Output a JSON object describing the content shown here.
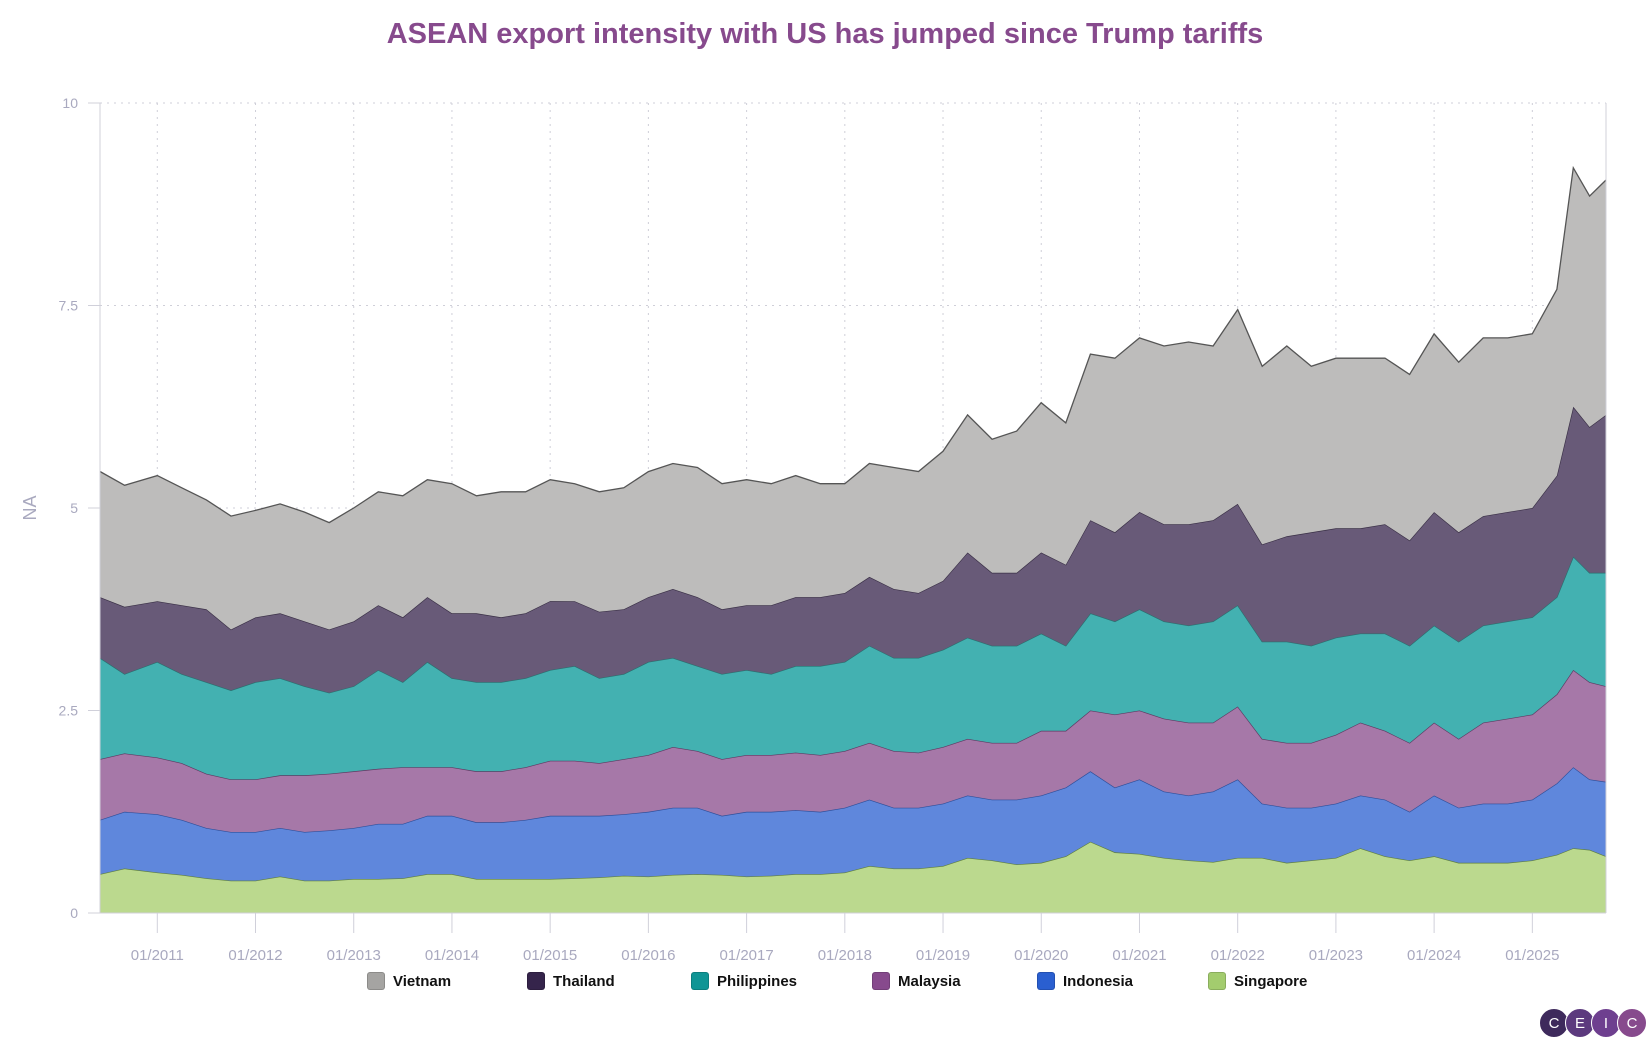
{
  "chart_data": {
    "type": "area",
    "stacked": true,
    "title": "ASEAN export intensity with US has jumped since Trump tariffs",
    "ylabel": "NA",
    "xlabel": "",
    "ylim": [
      0,
      10
    ],
    "yticks": [
      "0",
      "2.5",
      "5",
      "7.5",
      "10"
    ],
    "ytick_values": [
      0,
      2.5,
      5,
      7.5,
      10
    ],
    "xticks": [
      "01/2011",
      "01/2012",
      "01/2013",
      "01/2014",
      "01/2015",
      "01/2016",
      "01/2017",
      "01/2018",
      "01/2019",
      "01/2020",
      "01/2021",
      "01/2022",
      "01/2023",
      "01/2024",
      "01/2025"
    ],
    "xrange": [
      "2010-06",
      "2025-10"
    ],
    "grid": "dotted both axes",
    "legend_position": "bottom",
    "x": [
      "2010-06",
      "2010-09",
      "2011-01",
      "2011-04",
      "2011-07",
      "2011-10",
      "2012-01",
      "2012-04",
      "2012-07",
      "2012-10",
      "2013-01",
      "2013-04",
      "2013-07",
      "2013-10",
      "2014-01",
      "2014-04",
      "2014-07",
      "2014-10",
      "2015-01",
      "2015-04",
      "2015-07",
      "2015-10",
      "2016-01",
      "2016-04",
      "2016-07",
      "2016-10",
      "2017-01",
      "2017-04",
      "2017-07",
      "2017-10",
      "2018-01",
      "2018-04",
      "2018-07",
      "2018-10",
      "2019-01",
      "2019-04",
      "2019-07",
      "2019-10",
      "2020-01",
      "2020-04",
      "2020-07",
      "2020-10",
      "2021-01",
      "2021-04",
      "2021-07",
      "2021-10",
      "2022-01",
      "2022-04",
      "2022-07",
      "2022-10",
      "2023-01",
      "2023-04",
      "2023-07",
      "2023-10",
      "2024-01",
      "2024-04",
      "2024-07",
      "2024-10",
      "2025-01",
      "2025-04",
      "2025-06",
      "2025-08",
      "2025-10"
    ],
    "series": [
      {
        "name": "Singapore",
        "color": "#a3cc6e",
        "fill": "#bbd98e",
        "stroke": "#5f7f3f",
        "values": [
          0.48,
          0.55,
          0.5,
          0.47,
          0.43,
          0.4,
          0.4,
          0.45,
          0.4,
          0.4,
          0.42,
          0.42,
          0.43,
          0.48,
          0.48,
          0.42,
          0.42,
          0.42,
          0.42,
          0.43,
          0.44,
          0.46,
          0.45,
          0.47,
          0.48,
          0.47,
          0.45,
          0.46,
          0.48,
          0.48,
          0.5,
          0.58,
          0.55,
          0.55,
          0.58,
          0.68,
          0.65,
          0.6,
          0.62,
          0.7,
          0.88,
          0.75,
          0.73,
          0.68,
          0.65,
          0.63,
          0.68,
          0.68,
          0.62,
          0.65,
          0.68,
          0.8,
          0.7,
          0.65,
          0.7,
          0.62,
          0.62,
          0.62,
          0.65,
          0.72,
          0.8,
          0.78,
          0.7
        ]
      },
      {
        "name": "Indonesia",
        "color": "#2a5fd0",
        "fill": "#5f87dc",
        "stroke": "#2f4f9a",
        "values": [
          0.67,
          0.7,
          0.72,
          0.68,
          0.62,
          0.6,
          0.6,
          0.6,
          0.6,
          0.62,
          0.63,
          0.68,
          0.67,
          0.72,
          0.72,
          0.7,
          0.7,
          0.73,
          0.78,
          0.77,
          0.76,
          0.76,
          0.8,
          0.83,
          0.82,
          0.73,
          0.8,
          0.79,
          0.79,
          0.77,
          0.8,
          0.82,
          0.75,
          0.75,
          0.77,
          0.77,
          0.75,
          0.8,
          0.83,
          0.85,
          0.87,
          0.8,
          0.92,
          0.82,
          0.8,
          0.87,
          0.97,
          0.67,
          0.68,
          0.65,
          0.67,
          0.65,
          0.7,
          0.6,
          0.75,
          0.68,
          0.73,
          0.73,
          0.75,
          0.88,
          1.0,
          0.87,
          0.92
        ]
      },
      {
        "name": "Malaysia",
        "color": "#874a8d",
        "fill": "#a678a8",
        "stroke": "#5e3a62",
        "values": [
          0.75,
          0.72,
          0.7,
          0.7,
          0.67,
          0.65,
          0.65,
          0.65,
          0.7,
          0.7,
          0.7,
          0.68,
          0.7,
          0.6,
          0.6,
          0.63,
          0.63,
          0.65,
          0.68,
          0.68,
          0.65,
          0.68,
          0.7,
          0.75,
          0.7,
          0.7,
          0.7,
          0.7,
          0.71,
          0.7,
          0.7,
          0.7,
          0.7,
          0.68,
          0.7,
          0.7,
          0.7,
          0.7,
          0.8,
          0.7,
          0.75,
          0.9,
          0.85,
          0.9,
          0.9,
          0.85,
          0.9,
          0.8,
          0.8,
          0.8,
          0.85,
          0.9,
          0.85,
          0.85,
          0.9,
          0.85,
          1.0,
          1.05,
          1.05,
          1.1,
          1.2,
          1.2,
          1.18
        ]
      },
      {
        "name": "Philippines",
        "color": "#0f9595",
        "fill": "#43b1b1",
        "stroke": "#2b6f6f",
        "values": [
          1.25,
          0.98,
          1.18,
          1.1,
          1.13,
          1.1,
          1.2,
          1.2,
          1.1,
          1.0,
          1.05,
          1.22,
          1.05,
          1.3,
          1.1,
          1.1,
          1.1,
          1.1,
          1.12,
          1.17,
          1.05,
          1.05,
          1.15,
          1.1,
          1.05,
          1.05,
          1.05,
          1.0,
          1.07,
          1.1,
          1.1,
          1.2,
          1.15,
          1.17,
          1.2,
          1.25,
          1.2,
          1.2,
          1.2,
          1.05,
          1.2,
          1.15,
          1.25,
          1.2,
          1.2,
          1.25,
          1.25,
          1.2,
          1.25,
          1.2,
          1.2,
          1.1,
          1.2,
          1.2,
          1.2,
          1.2,
          1.2,
          1.2,
          1.2,
          1.2,
          1.4,
          1.35,
          1.4
        ]
      },
      {
        "name": "Thailand",
        "color": "#35244b",
        "fill": "#685a78",
        "stroke": "#3a3046",
        "values": [
          0.75,
          0.83,
          0.75,
          0.85,
          0.9,
          0.75,
          0.8,
          0.8,
          0.8,
          0.78,
          0.8,
          0.8,
          0.8,
          0.8,
          0.8,
          0.85,
          0.8,
          0.8,
          0.85,
          0.8,
          0.82,
          0.8,
          0.8,
          0.85,
          0.85,
          0.8,
          0.8,
          0.85,
          0.85,
          0.85,
          0.85,
          0.85,
          0.85,
          0.8,
          0.85,
          1.05,
          0.9,
          0.9,
          1.0,
          1.0,
          1.15,
          1.1,
          1.2,
          1.2,
          1.25,
          1.25,
          1.25,
          1.2,
          1.3,
          1.4,
          1.35,
          1.3,
          1.35,
          1.3,
          1.4,
          1.35,
          1.35,
          1.35,
          1.35,
          1.5,
          1.85,
          1.8,
          1.95
        ]
      },
      {
        "name": "Vietnam",
        "color": "#a5a4a2",
        "fill": "#bdbcbb",
        "stroke": "#555555",
        "values": [
          1.55,
          1.5,
          1.55,
          1.45,
          1.35,
          1.4,
          1.32,
          1.35,
          1.35,
          1.32,
          1.4,
          1.4,
          1.5,
          1.45,
          1.6,
          1.45,
          1.55,
          1.5,
          1.5,
          1.45,
          1.48,
          1.5,
          1.55,
          1.55,
          1.6,
          1.55,
          1.55,
          1.5,
          1.5,
          1.4,
          1.35,
          1.4,
          1.5,
          1.5,
          1.6,
          1.7,
          1.65,
          1.75,
          1.85,
          1.75,
          2.05,
          2.15,
          2.15,
          2.2,
          2.25,
          2.15,
          2.4,
          2.2,
          2.35,
          2.05,
          2.1,
          2.1,
          2.05,
          2.05,
          2.2,
          2.1,
          2.2,
          2.15,
          2.15,
          2.3,
          2.95,
          2.85,
          2.9
        ]
      }
    ]
  },
  "legend": [
    "Vietnam",
    "Thailand",
    "Philippines",
    "Malaysia",
    "Indonesia",
    "Singapore"
  ],
  "logo": [
    "C",
    "E",
    "I",
    "C"
  ]
}
